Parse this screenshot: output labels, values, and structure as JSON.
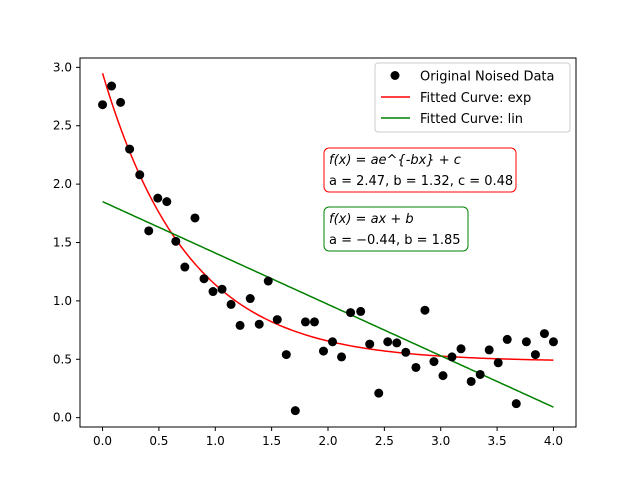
{
  "chart_data": {
    "type": "scatter",
    "xlim": [
      -0.2,
      4.2
    ],
    "ylim": [
      -0.08,
      3.08
    ],
    "xticks": [
      0.0,
      0.5,
      1.0,
      1.5,
      2.0,
      2.5,
      3.0,
      3.5,
      4.0
    ],
    "xtick_labels": [
      "0.0",
      "0.5",
      "1.0",
      "1.5",
      "2.0",
      "2.5",
      "3.0",
      "3.5",
      "4.0"
    ],
    "yticks": [
      0.0,
      0.5,
      1.0,
      1.5,
      2.0,
      2.5,
      3.0
    ],
    "ytick_labels": [
      "0.0",
      "0.5",
      "1.0",
      "1.5",
      "2.0",
      "2.5",
      "3.0"
    ],
    "grid": false,
    "legend_position": "top-right",
    "legend": [
      {
        "label": "Original Noised Data",
        "marker": "circle",
        "color": "#000000"
      },
      {
        "label": "Fitted Curve: exp",
        "marker": "line",
        "color": "#ff0000"
      },
      {
        "label": "Fitted Curve: lin",
        "marker": "line",
        "color": "#008000"
      }
    ],
    "annotations": [
      {
        "line1": "f(x) = ae^{-bx} + c",
        "line2": "a = 2.47, b = 1.32, c = 0.48",
        "color": "#ff0000"
      },
      {
        "line1": "f(x) = ax + b",
        "line2": "a = −0.44, b = 1.85",
        "color": "#008000"
      }
    ],
    "series": [
      {
        "name": "Original Noised Data",
        "type": "scatter",
        "color": "#000000",
        "points": [
          [
            0.0,
            2.68
          ],
          [
            0.08,
            2.84
          ],
          [
            0.16,
            2.7
          ],
          [
            0.24,
            2.3
          ],
          [
            0.33,
            2.08
          ],
          [
            0.41,
            1.6
          ],
          [
            0.49,
            1.88
          ],
          [
            0.57,
            1.85
          ],
          [
            0.65,
            1.51
          ],
          [
            0.73,
            1.29
          ],
          [
            0.82,
            1.71
          ],
          [
            0.9,
            1.19
          ],
          [
            0.98,
            1.08
          ],
          [
            1.06,
            1.1
          ],
          [
            1.14,
            0.97
          ],
          [
            1.22,
            0.79
          ],
          [
            1.31,
            1.02
          ],
          [
            1.39,
            0.8
          ],
          [
            1.47,
            1.17
          ],
          [
            1.55,
            0.84
          ],
          [
            1.63,
            0.54
          ],
          [
            1.71,
            0.06
          ],
          [
            1.8,
            0.82
          ],
          [
            1.88,
            0.82
          ],
          [
            1.96,
            0.57
          ],
          [
            2.04,
            0.65
          ],
          [
            2.12,
            0.52
          ],
          [
            2.2,
            0.9
          ],
          [
            2.29,
            0.91
          ],
          [
            2.37,
            0.63
          ],
          [
            2.45,
            0.21
          ],
          [
            2.53,
            0.65
          ],
          [
            2.61,
            0.64
          ],
          [
            2.69,
            0.56
          ],
          [
            2.78,
            0.43
          ],
          [
            2.86,
            0.92
          ],
          [
            2.94,
            0.48
          ],
          [
            3.02,
            0.36
          ],
          [
            3.1,
            0.52
          ],
          [
            3.18,
            0.59
          ],
          [
            3.27,
            0.31
          ],
          [
            3.35,
            0.37
          ],
          [
            3.43,
            0.58
          ],
          [
            3.51,
            0.47
          ],
          [
            3.59,
            0.67
          ],
          [
            3.67,
            0.12
          ],
          [
            3.76,
            0.65
          ],
          [
            3.84,
            0.54
          ],
          [
            3.92,
            0.72
          ],
          [
            4.0,
            0.65
          ]
        ]
      },
      {
        "name": "Fitted Curve: exp",
        "type": "function",
        "form": "exp",
        "color": "#ff0000",
        "params": {
          "a": 2.47,
          "b": 1.32,
          "c": 0.48
        },
        "x_range": [
          0,
          4
        ]
      },
      {
        "name": "Fitted Curve: lin",
        "type": "function",
        "form": "linear",
        "color": "#008000",
        "params": {
          "a": -0.44,
          "b": 1.85
        },
        "x_range": [
          0,
          4
        ]
      }
    ]
  }
}
